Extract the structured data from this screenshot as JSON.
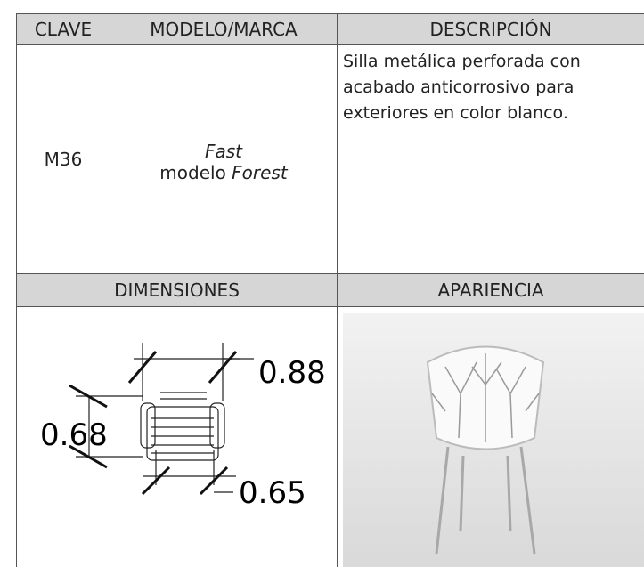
{
  "header": {
    "columns": [
      "CLAVE",
      "MODELO/MARCA",
      "DESCRIPCIÓN"
    ]
  },
  "row": {
    "clave": "M36",
    "marca": "Fast",
    "modelo_prefix": "modelo",
    "modelo": "Forest",
    "descripcion": [
      "Silla metálica perforada con",
      "acabado anticorrosivo para",
      "exteriores en color blanco."
    ]
  },
  "section": {
    "dimensiones": "DIMENSIONES",
    "apariencia": "APARIENCIA"
  },
  "dimensions": {
    "width": "0.88",
    "depth": "0.68",
    "seat": "0.65"
  }
}
